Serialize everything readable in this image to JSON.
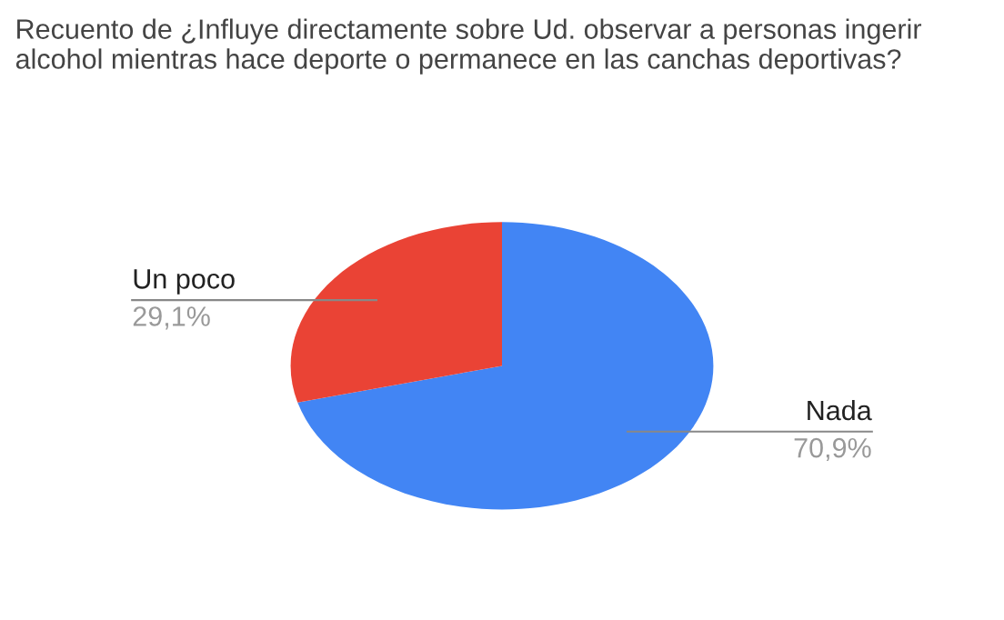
{
  "chart_data": {
    "type": "pie",
    "title": "Recuento de ¿Influye directamente sobre Ud. observar a personas ingerir alcohol mientras hace deporte o permanece en las canchas deportivas?",
    "categories": [
      "Nada",
      "Un poco"
    ],
    "values": [
      70.9,
      29.1
    ],
    "colors": [
      "#4285f4",
      "#ea4335"
    ],
    "value_labels": [
      "70,9%",
      "29,1%"
    ],
    "legend": false
  }
}
